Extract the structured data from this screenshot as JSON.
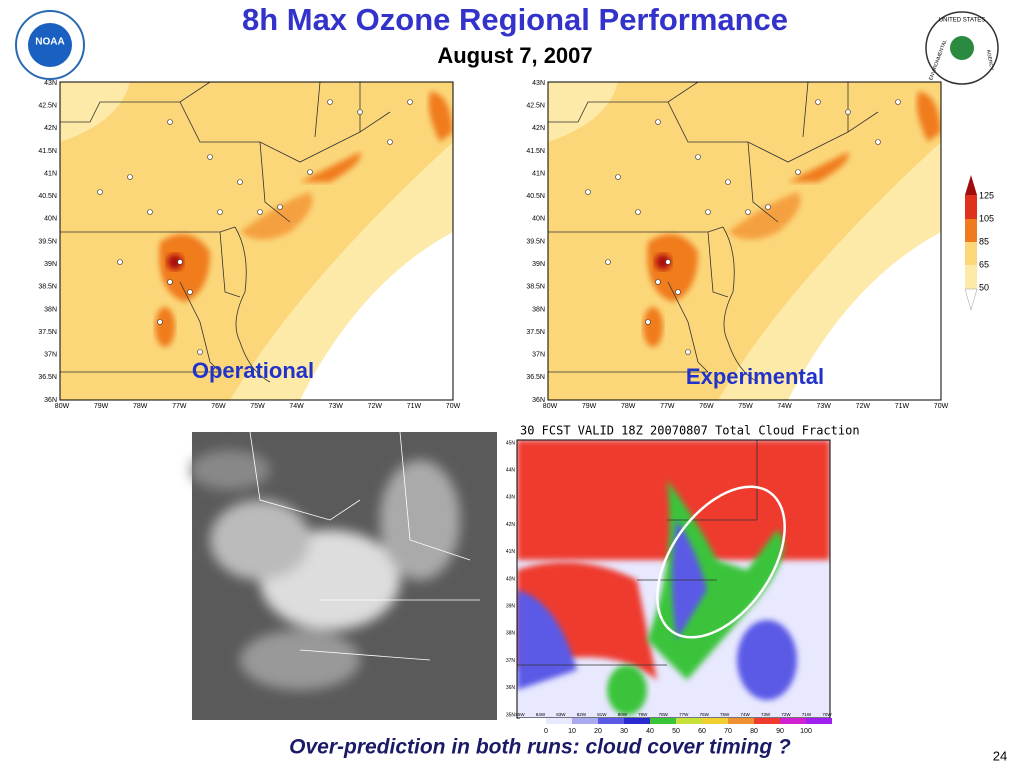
{
  "header": {
    "title": "8h Max Ozone Regional Performance",
    "subtitle": "August 7, 2007"
  },
  "logos": {
    "left": "NOAA",
    "right_top": "UNITED STATES",
    "right_left": "ENVIRONMENTAL",
    "right_right": "AGENCY"
  },
  "maps": [
    {
      "label": "Operational"
    },
    {
      "label": "Experimental"
    }
  ],
  "map_axes": {
    "lat_labels": [
      "43N",
      "42.5N",
      "42N",
      "41.5N",
      "41N",
      "40.5N",
      "40N",
      "39.5N",
      "39N",
      "38.5N",
      "38N",
      "37.5N",
      "37N",
      "36.5N",
      "36N"
    ],
    "lon_labels": [
      "80W",
      "79W",
      "78W",
      "77W",
      "76W",
      "75W",
      "74W",
      "73W",
      "72W",
      "71W",
      "70W"
    ]
  },
  "ozone_legend": [
    125,
    105,
    85,
    65,
    50
  ],
  "cloud_panel": {
    "title": "30 FCST VALID 18Z 20070807 Total Cloud Fraction",
    "lat_labels": [
      "45N",
      "44N",
      "43N",
      "42N",
      "41N",
      "40N",
      "39N",
      "38N",
      "37N",
      "36N",
      "35N"
    ],
    "lon_labels": [
      "85W",
      "84W",
      "83W",
      "82W",
      "81W",
      "80W",
      "79W",
      "78W",
      "77W",
      "76W",
      "75W",
      "74W",
      "73W",
      "72W",
      "71W",
      "70W"
    ],
    "colorbar_labels": [
      0,
      10,
      20,
      30,
      40,
      50,
      60,
      70,
      80,
      90,
      100
    ]
  },
  "caption": "Over-prediction in both runs:  cloud cover timing ?",
  "page_number": "24"
}
